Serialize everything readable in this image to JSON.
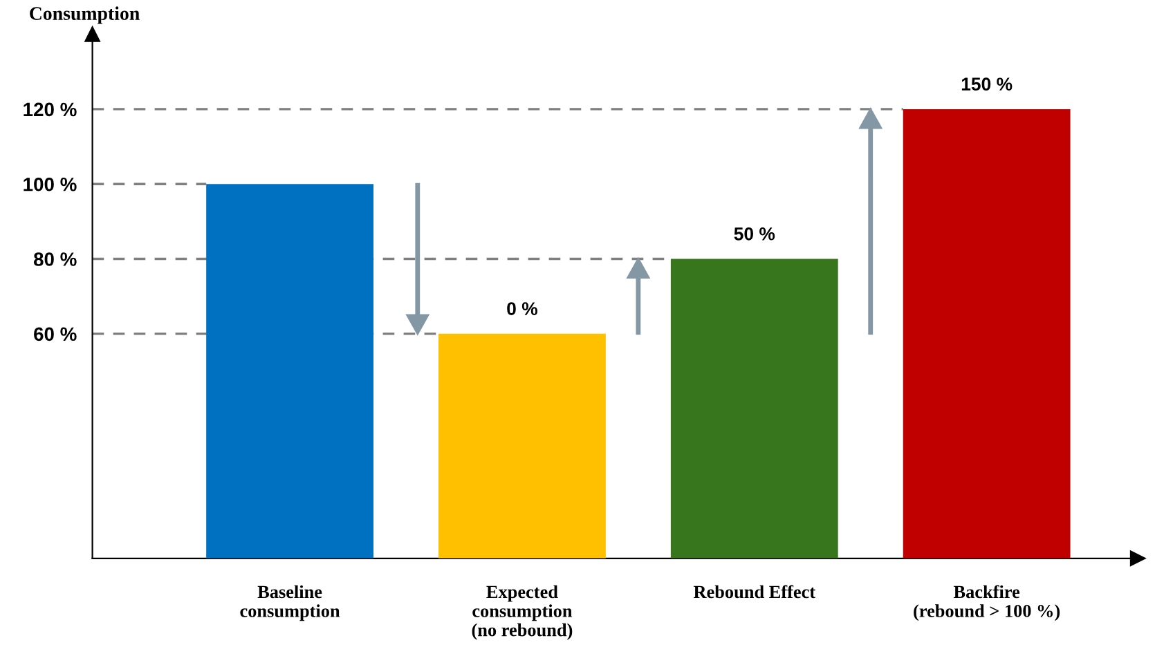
{
  "chart_data": {
    "type": "bar",
    "ylabel": "Consumption",
    "categories": [
      "Baseline\nconsumption",
      "Expected\nconsumption\n(no rebound)",
      "Rebound Effect",
      "Backfire\n(rebound > 100 %)"
    ],
    "values": [
      100,
      60,
      80,
      120
    ],
    "colors": [
      "#0070c0",
      "#ffc000",
      "#38761d",
      "#c00000"
    ],
    "annotations": [
      {
        "text": "0 %",
        "x": "Expected\nconsumption\n(no rebound)",
        "y": 60
      },
      {
        "text": "50 %",
        "x": "Rebound Effect",
        "y": 80
      },
      {
        "text": "150 %",
        "x": "Backfire\n(rebound > 100 %)",
        "y": 120
      }
    ],
    "ylim": [
      0,
      140
    ],
    "yticks": [
      {
        "value": 60,
        "label": "60 %"
      },
      {
        "value": 80,
        "label": "80 %"
      },
      {
        "value": 100,
        "label": "100 %"
      },
      {
        "value": 120,
        "label": "120 %"
      }
    ],
    "ref_lines": [
      {
        "axis": "y",
        "value": 60,
        "line_style": "dashed",
        "color": "#7f7f7f"
      },
      {
        "axis": "y",
        "value": 80,
        "line_style": "dashed",
        "color": "#7f7f7f"
      },
      {
        "axis": "y",
        "value": 100,
        "line_style": "dashed",
        "color": "#7f7f7f"
      },
      {
        "axis": "y",
        "value": 120,
        "line_style": "dashed",
        "color": "#7f7f7f"
      }
    ],
    "grid": false,
    "legend": false
  }
}
